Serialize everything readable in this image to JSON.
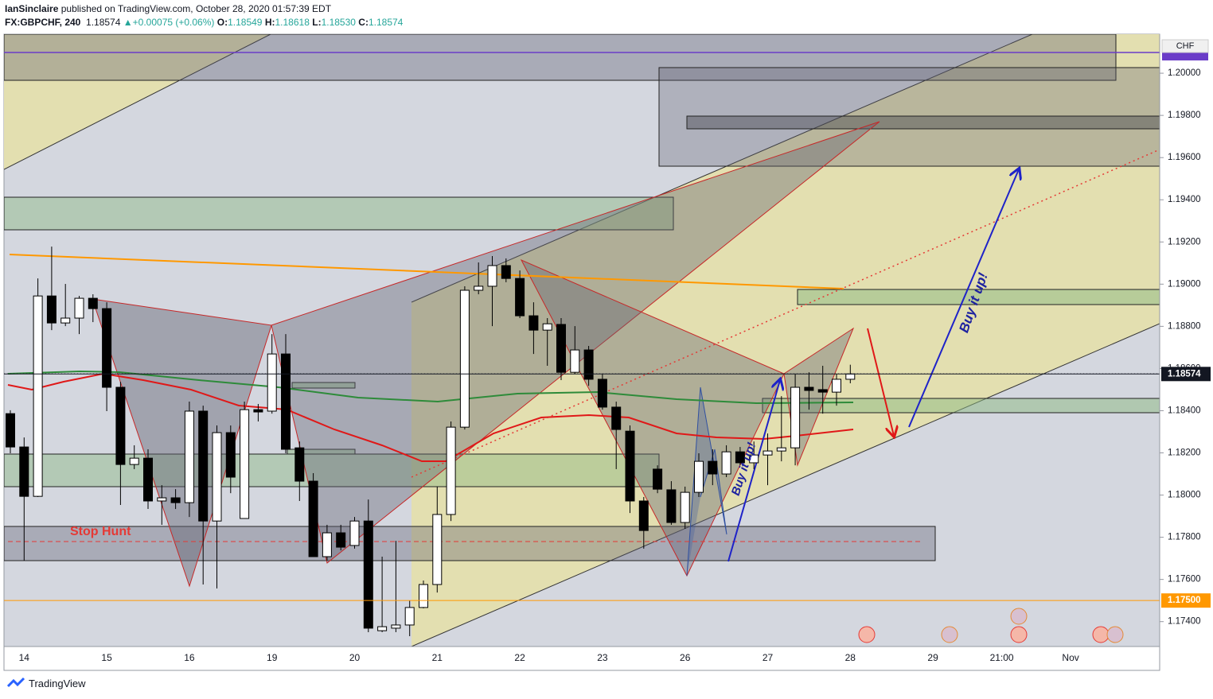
{
  "header": {
    "author": "IanSinclaire",
    "published": "published on TradingView.com, October 28, 2020 01:57:39 EDT",
    "symbol": "FX:GBPCHF, 240",
    "last": "1.18574",
    "arrow": "▲",
    "change": "+0.00075 (+0.06%)",
    "ohlc": [
      {
        "label": "O:",
        "value": "1.18549"
      },
      {
        "label": "H:",
        "value": "1.18618"
      },
      {
        "label": "L:",
        "value": "1.18530"
      },
      {
        "label": "C:",
        "value": "1.18574"
      }
    ]
  },
  "footer": {
    "brand": "TradingView"
  },
  "chart_data": {
    "type": "candlestick",
    "currency": "CHF",
    "up_color": "#ffffff",
    "down_color": "#000000",
    "border_color": "#000000",
    "categories": [
      null,
      "14",
      null,
      null,
      null,
      null,
      null,
      "15",
      null,
      null,
      null,
      null,
      null,
      "16",
      null,
      null,
      null,
      null,
      null,
      "19",
      null,
      null,
      null,
      null,
      null,
      "20",
      null,
      null,
      null,
      null,
      null,
      "21",
      null,
      null,
      null,
      null,
      null,
      "22",
      null,
      null,
      null,
      null,
      null,
      "23",
      null,
      null,
      null,
      null,
      null,
      "26",
      null,
      null,
      null,
      null,
      null,
      "27",
      null,
      null,
      null,
      null,
      null,
      "28",
      null,
      null,
      null,
      null,
      null,
      "29",
      null,
      null,
      null,
      null,
      "21:00",
      null,
      null,
      null,
      null,
      "Nov",
      null,
      null,
      null,
      null,
      null,
      null
    ],
    "open": [
      1.18386,
      1.18228,
      1.17994,
      1.18944,
      1.18816,
      1.18839,
      1.18933,
      1.18884,
      1.18511,
      1.18145,
      1.18175,
      1.17972,
      1.17987,
      1.17964,
      1.18398,
      1.17877,
      1.18296,
      1.17889,
      1.18405,
      1.18398,
      1.18669,
      1.18224,
      1.18066,
      1.17708,
      1.17821,
      1.17761,
      1.17877,
      1.17357,
      1.17369,
      1.17384,
      1.17467,
      1.17576,
      1.17908,
      1.18322,
      1.18971,
      1.1899,
      1.19088,
      1.19027,
      1.1885,
      1.18782,
      1.18809,
      1.18582,
      1.18688,
      1.18549,
      1.18417,
      1.18303,
      1.17972,
      1.18123,
      1.18025,
      1.1787,
      1.18013,
      1.1816,
      1.181,
      1.18205,
      1.18153,
      1.1819,
      1.18209,
      1.18224,
      1.18511,
      1.185,
      1.18488,
      1.18549,
      null,
      null,
      null,
      null,
      null,
      null,
      null,
      null,
      null,
      null,
      null,
      null,
      null,
      null,
      null,
      null,
      null,
      null,
      null,
      null,
      null,
      null
    ],
    "high": [
      1.18402,
      1.18273,
      1.19027,
      1.19178,
      1.19001,
      1.18944,
      1.18952,
      1.18914,
      1.18537,
      1.18236,
      1.18217,
      1.18047,
      1.18028,
      1.18443,
      1.18424,
      1.1833,
      1.1833,
      1.18443,
      1.18432,
      1.18763,
      1.18763,
      1.18254,
      1.18104,
      1.17859,
      1.17859,
      1.17896,
      1.17979,
      1.17708,
      1.17783,
      1.175,
      1.17595,
      1.1804,
      1.18349,
      1.1899,
      1.19103,
      1.19133,
      1.19122,
      1.19065,
      1.18914,
      1.18839,
      1.18839,
      1.18801,
      1.18707,
      1.18575,
      1.18443,
      1.1833,
      1.17991,
      1.18141,
      1.18066,
      1.1804,
      1.18198,
      1.18217,
      1.18236,
      1.18228,
      1.18254,
      1.18292,
      1.18469,
      1.18575,
      1.18582,
      1.18613,
      1.18575,
      1.18618,
      null,
      null,
      null,
      null,
      null,
      null,
      null,
      null,
      null,
      null,
      null,
      null,
      null,
      null,
      null,
      null,
      null,
      null,
      null,
      null,
      null,
      null
    ],
    "low": [
      1.18198,
      1.17689,
      1.17991,
      1.18782,
      1.18801,
      1.18763,
      1.1882,
      1.18398,
      1.17953,
      1.18123,
      1.17934,
      1.17859,
      1.17934,
      1.17896,
      1.17576,
      1.17557,
      1.18009,
      1.17889,
      1.18349,
      1.18386,
      1.18198,
      1.17972,
      1.17708,
      1.17689,
      1.17738,
      1.17746,
      1.1735,
      1.1735,
      1.1735,
      1.17331,
      1.17463,
      1.17538,
      1.17877,
      1.18311,
      1.18952,
      1.18801,
      1.19009,
      1.18839,
      1.18669,
      1.18613,
      1.18545,
      1.18575,
      1.18518,
      1.18405,
      1.18123,
      1.17915,
      1.17746,
      1.18009,
      1.17859,
      1.1784,
      1.17991,
      1.18047,
      1.18085,
      1.18141,
      1.18123,
      1.18047,
      1.1816,
      1.18141,
      1.18405,
      1.18386,
      1.18424,
      1.1853,
      null,
      null,
      null,
      null,
      null,
      null,
      null,
      null,
      null,
      null,
      null,
      null,
      null,
      null,
      null,
      null,
      null,
      null,
      null,
      null,
      null,
      null
    ],
    "close": [
      1.18228,
      1.17994,
      1.18944,
      1.18816,
      1.18839,
      1.18933,
      1.18884,
      1.18511,
      1.18145,
      1.18175,
      1.17972,
      1.17987,
      1.17964,
      1.18398,
      1.17877,
      1.18296,
      1.18085,
      1.18405,
      1.18394,
      1.18669,
      1.18217,
      1.18066,
      1.17708,
      1.17821,
      1.17753,
      1.17877,
      1.17369,
      1.17376,
      1.17384,
      1.17467,
      1.17576,
      1.17908,
      1.18322,
      1.18971,
      1.1899,
      1.19088,
      1.19027,
      1.1885,
      1.18782,
      1.18812,
      1.18582,
      1.18688,
      1.18549,
      1.18417,
      1.18311,
      1.17972,
      1.17832,
      1.18028,
      1.1787,
      1.18013,
      1.1816,
      1.181,
      1.18205,
      1.18153,
      1.1819,
      1.18209,
      1.18224,
      1.18511,
      1.18496,
      1.18488,
      1.18549,
      1.18574,
      null,
      null,
      null,
      null,
      null,
      null,
      null,
      null,
      null,
      null,
      null,
      null,
      null,
      null,
      null,
      null,
      null,
      null,
      null,
      null,
      null,
      null
    ],
    "ylim": [
      1.17282,
      1.20185
    ],
    "yticks": [
      {
        "value": 1.174,
        "label": "1.17400"
      },
      {
        "value": 1.176,
        "label": "1.17600"
      },
      {
        "value": 1.178,
        "label": "1.17800"
      },
      {
        "value": 1.18,
        "label": "1.18000"
      },
      {
        "value": 1.182,
        "label": "1.18200"
      },
      {
        "value": 1.184,
        "label": "1.18400"
      },
      {
        "value": 1.186,
        "label": "1.18600"
      },
      {
        "value": 1.188,
        "label": "1.18800"
      },
      {
        "value": 1.19,
        "label": "1.19000"
      },
      {
        "value": 1.192,
        "label": "1.19200"
      },
      {
        "value": 1.194,
        "label": "1.19400"
      },
      {
        "value": 1.196,
        "label": "1.19600"
      },
      {
        "value": 1.198,
        "label": "1.19800"
      },
      {
        "value": 1.2,
        "label": "1.20000"
      }
    ],
    "price_lines": [
      {
        "value": 1.175,
        "label": "1.17500",
        "color": "#ff9800"
      },
      {
        "value": 1.18574,
        "label": "1.18574",
        "color": "#131722"
      }
    ],
    "annotations": [
      {
        "text": "Stop Hunt"
      },
      {
        "text": "Buy it up!"
      },
      {
        "text": "Buy it up!"
      }
    ]
  }
}
